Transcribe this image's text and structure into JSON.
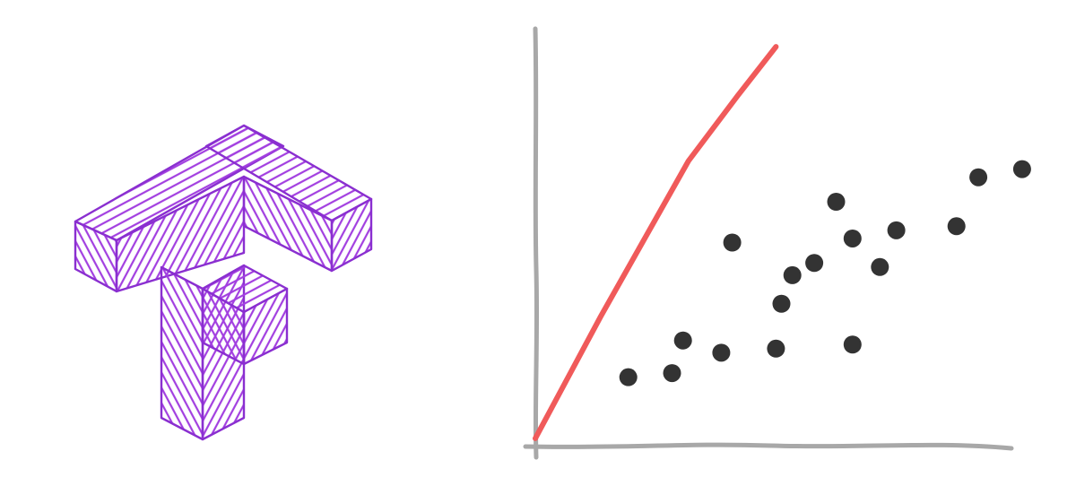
{
  "logo": {
    "icon": "tensorflow-logo-icon",
    "color": "#a23fe0",
    "outline_color": "#8a2fd0"
  },
  "chart_data": {
    "type": "scatter",
    "title": "",
    "xlabel": "",
    "ylabel": "",
    "xlim": [
      0,
      100
    ],
    "ylim": [
      0,
      100
    ],
    "grid": false,
    "axis_color": "#a8a8a8",
    "points_color": "#333333",
    "points": [
      {
        "x": 17,
        "y": 17
      },
      {
        "x": 25,
        "y": 18
      },
      {
        "x": 27,
        "y": 26
      },
      {
        "x": 34,
        "y": 23
      },
      {
        "x": 36,
        "y": 50
      },
      {
        "x": 44,
        "y": 24
      },
      {
        "x": 45,
        "y": 35
      },
      {
        "x": 47,
        "y": 42
      },
      {
        "x": 51,
        "y": 45
      },
      {
        "x": 55,
        "y": 60
      },
      {
        "x": 58,
        "y": 25
      },
      {
        "x": 58,
        "y": 51
      },
      {
        "x": 63,
        "y": 44
      },
      {
        "x": 66,
        "y": 53
      },
      {
        "x": 77,
        "y": 54
      },
      {
        "x": 81,
        "y": 66
      },
      {
        "x": 89,
        "y": 68
      }
    ],
    "line": {
      "color": "#f05a5a",
      "points": [
        {
          "x": 0,
          "y": 2
        },
        {
          "x": 12,
          "y": 32
        },
        {
          "x": 28,
          "y": 70
        },
        {
          "x": 37,
          "y": 86
        },
        {
          "x": 44,
          "y": 98
        }
      ]
    }
  }
}
